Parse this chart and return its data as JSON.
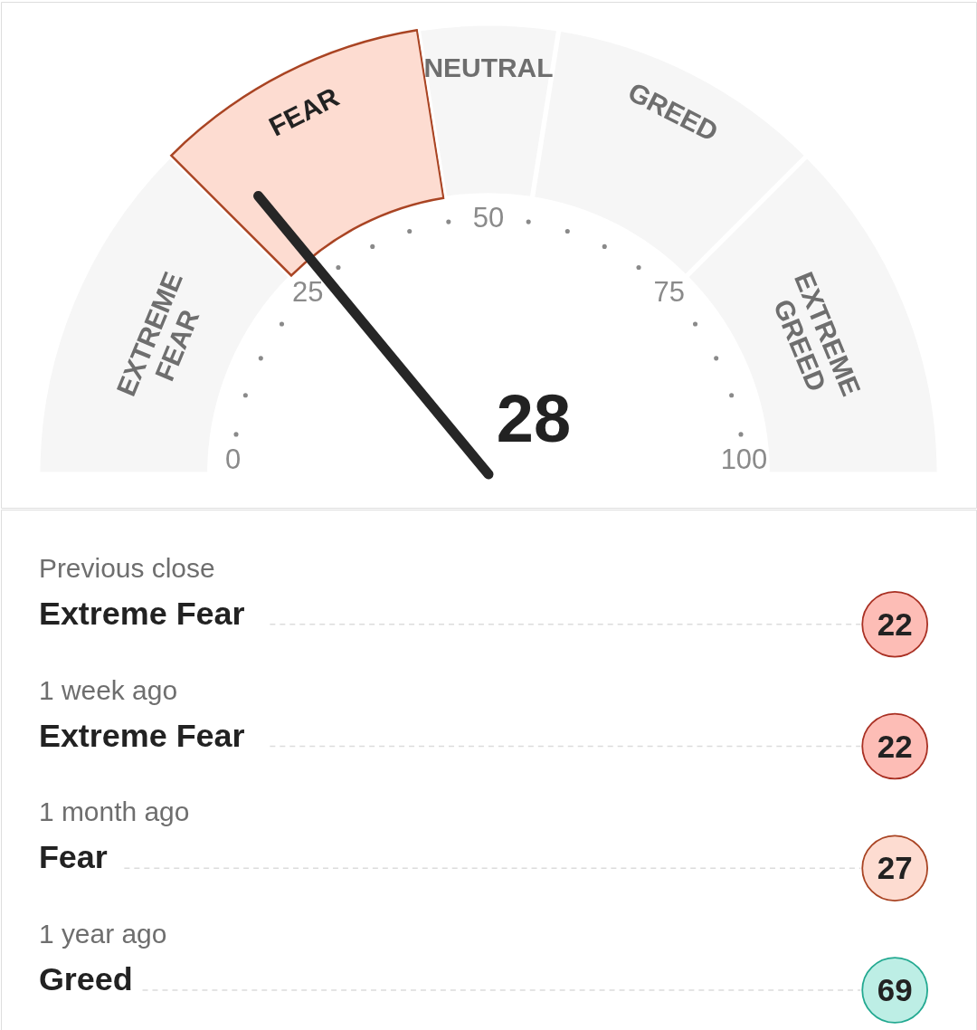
{
  "chart_data": [
    {
      "type": "donut",
      "categories": [
        "EXTREME FEAR",
        "FEAR",
        "NEUTRAL",
        "GREED",
        "EXTREME GREED"
      ],
      "values": [
        25,
        20,
        10,
        20,
        25
      ],
      "colors": [
        "#f6f6f6",
        "#fddcd1",
        "#f6f6f6",
        "#f6f6f6",
        "#f6f6f6"
      ],
      "needle": "FEAR",
      "annotations": [
        "28",
        "0",
        "25",
        "50",
        "75",
        "100"
      ]
    },
    {
      "type": "other",
      "categories": [
        "Previous close",
        "1 week ago",
        "1 month ago",
        "1 year ago"
      ],
      "values": [
        22,
        22,
        27,
        69
      ],
      "colors": [
        "#fdbdb6",
        "#fdbdb6",
        "#fddcd1",
        "#bdeee5"
      ],
      "data_labels": true,
      "annotations": [
        "Extreme Fear",
        "Extreme Fear",
        "Fear",
        "Greed"
      ]
    }
  ]
}
